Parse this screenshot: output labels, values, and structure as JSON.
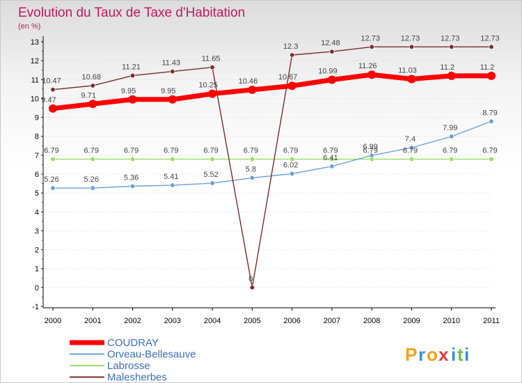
{
  "chart_data": {
    "type": "line",
    "title": "Evolution du Taux de Taxe d'Habitation",
    "subtitle": "(en %)",
    "x": [
      "2000",
      "2001",
      "2002",
      "2003",
      "2004",
      "2005",
      "2006",
      "2007",
      "2008",
      "2009",
      "2010",
      "2011"
    ],
    "ylim": [
      -1,
      13
    ],
    "yticks": [
      -1,
      0,
      1,
      2,
      3,
      4,
      5,
      6,
      7,
      8,
      9,
      10,
      11,
      12,
      13
    ],
    "grid": "horizontal-dotted",
    "legend_placement": "bottom-left",
    "series": [
      {
        "name": "COUDRAY",
        "color": "#ff0000",
        "values": [
          9.47,
          9.71,
          9.95,
          9.95,
          10.25,
          10.46,
          10.67,
          10.99,
          11.26,
          11.03,
          11.2,
          11.2
        ],
        "labels": [
          "9.47",
          "9.71",
          "9.95",
          "9.95",
          "10.25",
          "10.46",
          "10.67",
          "10.99",
          "11.26",
          "11.03",
          "11.2",
          "11.2"
        ]
      },
      {
        "name": "Orveau-Bellesauve",
        "color": "#6a9fd8",
        "values": [
          5.26,
          5.26,
          5.36,
          5.41,
          5.52,
          5.8,
          6.02,
          6.41,
          6.99,
          7.4,
          7.99,
          8.79
        ],
        "labels": [
          "5.26",
          "5.26",
          "5.36",
          "5.41",
          "5.52",
          "5.8",
          "6.02",
          "6.41",
          "6.99",
          "7.4",
          "7.99",
          "8.79"
        ]
      },
      {
        "name": "Labrosse",
        "color": "#99dd66",
        "values": [
          6.79,
          6.79,
          6.79,
          6.79,
          6.79,
          6.79,
          6.79,
          6.79,
          6.79,
          6.79,
          6.79,
          6.79
        ],
        "labels": [
          "6.79",
          "6.79",
          "6.79",
          "6.79",
          "6.79",
          "6.79",
          "6.79",
          "6.79",
          "6.79",
          "6.79",
          "6.79",
          "6.79"
        ]
      },
      {
        "name": "Malesherbes",
        "color": "#7a2b2b",
        "values": [
          10.47,
          10.68,
          11.21,
          11.43,
          11.65,
          0,
          12.3,
          12.48,
          12.73,
          12.73,
          12.73,
          12.73
        ],
        "labels": [
          "10.47",
          "10.68",
          "11.21",
          "11.43",
          "11.65",
          "0",
          "12.3",
          "12.48",
          "12.73",
          "12.73",
          "12.73",
          "12.73"
        ]
      }
    ]
  },
  "logo": {
    "letters": [
      "P",
      "r",
      "o",
      "x",
      "i",
      "t",
      "i"
    ],
    "colors": [
      "#f4a11d",
      "#3a8fd6",
      "#f4a11d",
      "#e23b3b",
      "#3a8fd6",
      "#6cc04a",
      "#3a8fd6"
    ]
  }
}
